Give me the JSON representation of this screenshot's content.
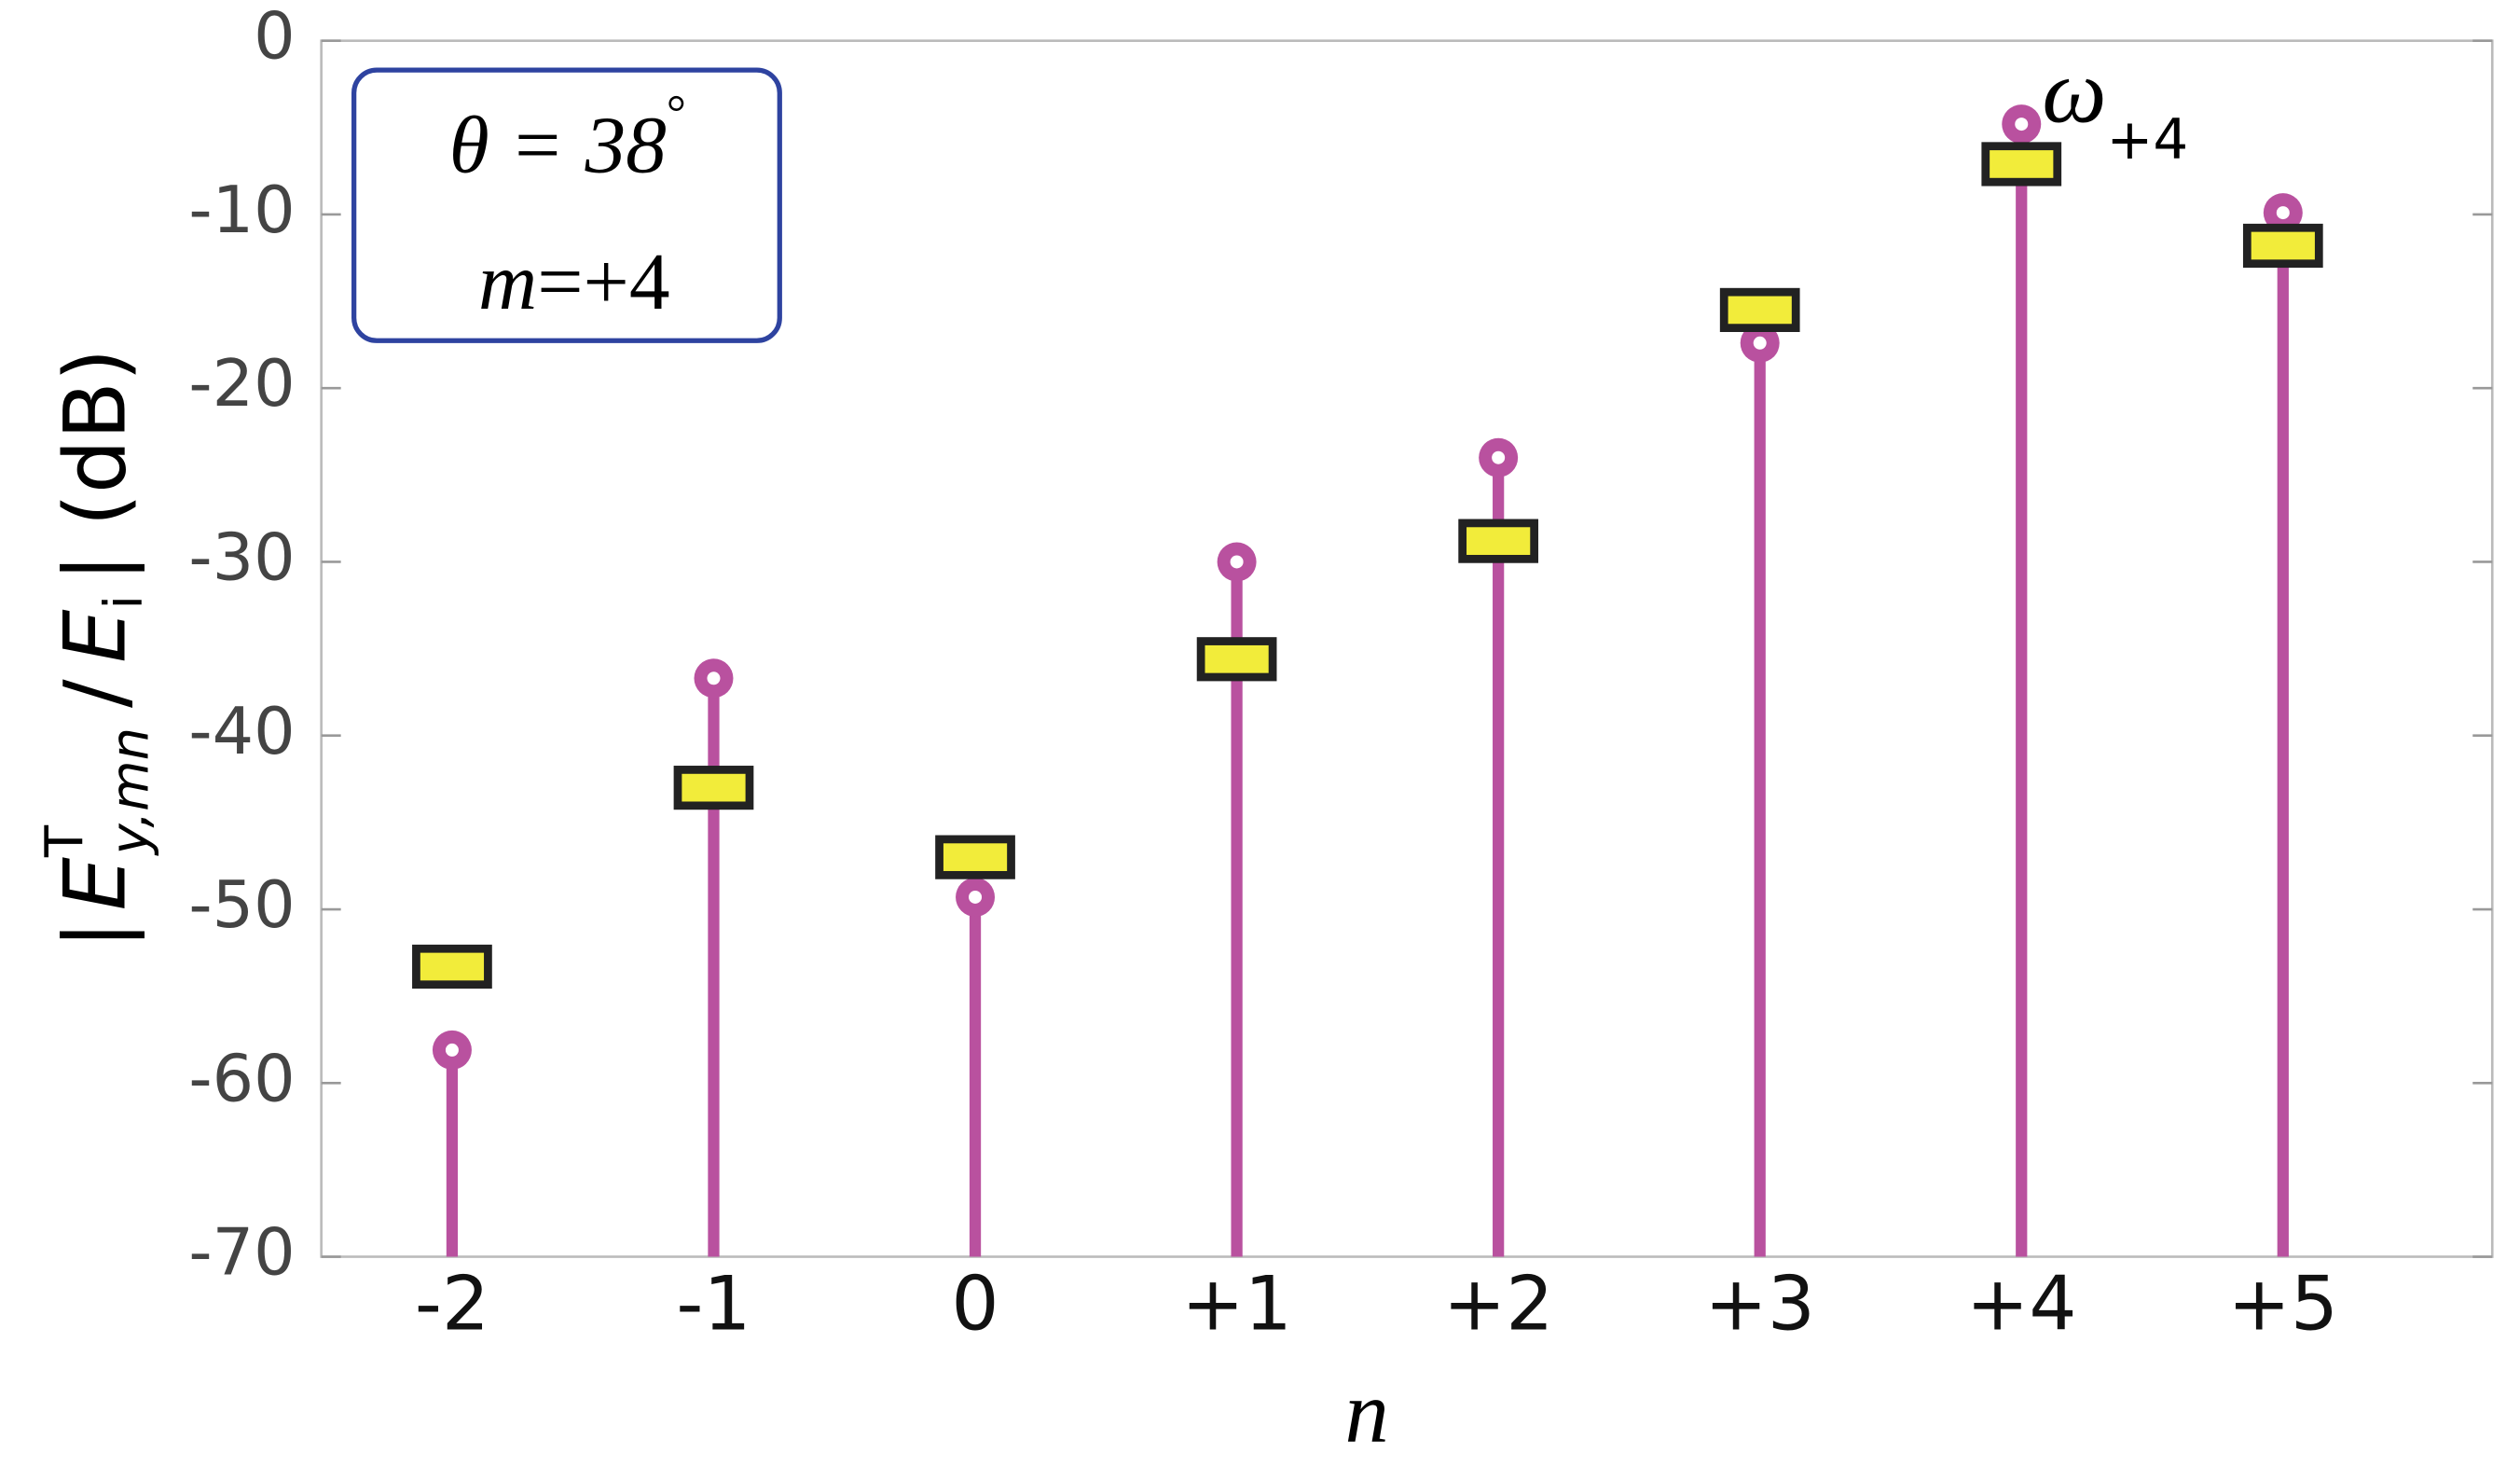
{
  "chart_data": {
    "type": "stem",
    "x": [
      -2,
      -1,
      0,
      1,
      2,
      3,
      4,
      5
    ],
    "xlim": [
      -2.5,
      5.8
    ],
    "xticks": [
      -2,
      -1,
      0,
      {
        "value": 1,
        "label": "+1"
      },
      {
        "value": 2,
        "label": "+2"
      },
      {
        "value": 3,
        "label": "+3"
      },
      {
        "value": 4,
        "label": "+4"
      },
      {
        "value": 5,
        "label": "+5"
      }
    ],
    "ylim": [
      -70,
      0
    ],
    "yticks": [
      -70,
      -60,
      -50,
      -40,
      -30,
      -20,
      -10,
      0
    ],
    "x_label": "n",
    "y_label_parts": [
      "|",
      "E",
      "T",
      "y,mn",
      "/",
      "E",
      "i",
      "| (dB)"
    ],
    "annotation_box": [
      "θ = 38",
      "°",
      "m",
      "=+4"
    ],
    "peak_label": [
      "ω",
      "+4"
    ],
    "series": [
      {
        "marker": "circle",
        "color": "#b9519f",
        "values": [
          -58.1,
          -36.7,
          -49.3,
          -30.0,
          -24.0,
          -17.4,
          -4.8,
          -9.9
        ]
      },
      {
        "marker": "rect",
        "color": "#f2ec3a",
        "values": [
          -53.3,
          -43.0,
          -47.0,
          -35.6,
          -28.8,
          -15.5,
          -7.1,
          -11.8
        ]
      }
    ]
  }
}
